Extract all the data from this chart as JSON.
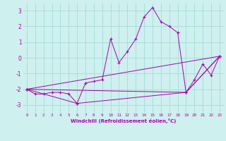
{
  "xlabel": "Windchill (Refroidissement éolien,°C)",
  "bg_color": "#cef0ee",
  "line_color": "#aa00aa",
  "grid_color": "#aadddd",
  "series": [
    [
      0,
      -2.0
    ],
    [
      1,
      -2.3
    ],
    [
      2,
      -2.3
    ],
    [
      3,
      -2.2
    ],
    [
      4,
      -2.2
    ],
    [
      5,
      -2.3
    ],
    [
      6,
      -2.9
    ],
    [
      7,
      -1.6
    ],
    [
      8,
      -1.5
    ],
    [
      9,
      -1.4
    ],
    [
      10,
      1.2
    ],
    [
      11,
      -0.3
    ],
    [
      12,
      0.4
    ],
    [
      13,
      1.2
    ],
    [
      14,
      2.6
    ],
    [
      15,
      3.2
    ],
    [
      16,
      2.3
    ],
    [
      17,
      2.0
    ],
    [
      18,
      1.6
    ],
    [
      19,
      -2.2
    ],
    [
      20,
      -1.4
    ],
    [
      21,
      -0.4
    ],
    [
      22,
      -1.1
    ],
    [
      23,
      0.1
    ]
  ],
  "series2": [
    [
      0,
      -2.0
    ],
    [
      23,
      0.1
    ]
  ],
  "series3": [
    [
      0,
      -2.0
    ],
    [
      19,
      -2.2
    ],
    [
      23,
      0.1
    ]
  ],
  "series4": [
    [
      0,
      -2.0
    ],
    [
      6,
      -2.9
    ],
    [
      19,
      -2.2
    ],
    [
      23,
      0.1
    ]
  ],
  "ylim": [
    -3.5,
    3.5
  ],
  "xlim": [
    -0.5,
    23.5
  ],
  "yticks": [
    -3,
    -2,
    -1,
    0,
    1,
    2,
    3
  ],
  "xticks": [
    0,
    1,
    2,
    3,
    4,
    5,
    6,
    7,
    8,
    9,
    10,
    11,
    12,
    13,
    14,
    15,
    16,
    17,
    18,
    19,
    20,
    21,
    22,
    23
  ]
}
